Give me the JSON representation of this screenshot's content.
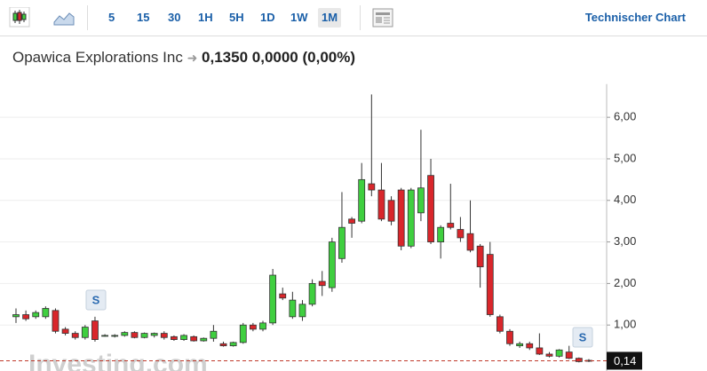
{
  "toolbar": {
    "intervals": [
      "5",
      "15",
      "30",
      "1H",
      "5H",
      "1D",
      "1W",
      "1M"
    ],
    "active": "1M",
    "link": "Technischer Chart"
  },
  "quote": {
    "name": "Opawica Explorations Inc",
    "price": "0,1350",
    "change": "0,0000",
    "change_pct": "(0,00%)"
  },
  "chart_data": {
    "type": "candlestick",
    "series": [
      {
        "up_color": "#3fcf3f",
        "down_color": "#d9262b",
        "open": [
          1.2,
          1.25,
          1.2,
          1.2,
          1.35,
          0.9,
          0.8,
          0.7,
          1.1,
          0.75,
          0.74,
          0.75,
          0.82,
          0.7,
          0.75,
          0.8,
          0.72,
          0.65,
          0.72,
          0.62,
          0.68,
          0.55,
          0.5,
          0.58,
          1.0,
          0.9,
          1.05,
          1.75,
          1.2,
          1.2,
          1.5,
          2.05,
          1.9,
          2.6,
          3.55,
          3.5,
          4.4,
          4.25,
          4.0,
          4.25,
          2.9,
          3.7,
          4.6,
          3.0,
          3.45,
          3.3,
          3.2,
          2.9,
          2.7,
          1.2,
          0.85,
          0.5,
          0.55,
          0.45,
          0.3,
          0.25,
          0.35,
          0.2,
          0.15
        ],
        "high": [
          1.4,
          1.35,
          1.35,
          1.45,
          1.4,
          0.95,
          0.85,
          1.0,
          1.2,
          0.78,
          0.78,
          0.85,
          0.85,
          0.82,
          0.82,
          0.85,
          0.75,
          0.78,
          0.75,
          0.7,
          1.0,
          0.6,
          0.6,
          1.05,
          1.05,
          1.1,
          2.35,
          1.9,
          1.8,
          1.6,
          2.1,
          2.3,
          3.1,
          4.2,
          3.6,
          4.9,
          6.55,
          4.9,
          4.1,
          4.3,
          4.3,
          5.7,
          5.0,
          3.4,
          4.4,
          3.6,
          4.0,
          2.95,
          3.0,
          1.25,
          0.9,
          0.6,
          0.6,
          0.8,
          0.35,
          0.42,
          0.5,
          0.22,
          0.18
        ],
        "low": [
          1.05,
          1.1,
          1.15,
          1.15,
          0.8,
          0.75,
          0.65,
          0.65,
          0.6,
          0.72,
          0.7,
          0.72,
          0.68,
          0.68,
          0.7,
          0.65,
          0.62,
          0.62,
          0.6,
          0.6,
          0.6,
          0.48,
          0.48,
          0.55,
          0.85,
          0.85,
          1.0,
          1.6,
          1.15,
          1.1,
          1.45,
          1.7,
          1.8,
          2.5,
          3.1,
          3.45,
          4.1,
          3.5,
          3.4,
          2.8,
          2.85,
          3.5,
          2.95,
          2.6,
          3.3,
          3.0,
          2.75,
          1.9,
          1.2,
          0.8,
          0.5,
          0.45,
          0.4,
          0.28,
          0.22,
          0.22,
          0.18,
          0.1,
          0.11
        ],
        "close": [
          1.25,
          1.15,
          1.3,
          1.4,
          0.85,
          0.8,
          0.7,
          0.95,
          0.65,
          0.75,
          0.75,
          0.82,
          0.7,
          0.8,
          0.8,
          0.7,
          0.65,
          0.75,
          0.62,
          0.68,
          0.85,
          0.5,
          0.58,
          1.0,
          0.9,
          1.05,
          2.2,
          1.65,
          1.6,
          1.5,
          2.0,
          1.95,
          3.0,
          3.35,
          3.45,
          4.5,
          4.25,
          3.55,
          3.5,
          2.9,
          4.25,
          4.3,
          3.0,
          3.35,
          3.35,
          3.1,
          2.8,
          2.4,
          1.25,
          0.85,
          0.55,
          0.55,
          0.45,
          0.3,
          0.25,
          0.4,
          0.2,
          0.12,
          0.13
        ]
      }
    ],
    "ylim": [
      -0.1,
      6.8
    ],
    "yticks": [
      {
        "value": 1,
        "label": "1,00"
      },
      {
        "value": 2,
        "label": "2,00"
      },
      {
        "value": 3,
        "label": "3,00"
      },
      {
        "value": 4,
        "label": "4,00"
      },
      {
        "value": 5,
        "label": "5,00"
      },
      {
        "value": 6,
        "label": "6,00"
      }
    ],
    "grid": true,
    "last_price": {
      "value": 0.14,
      "label": "0,14"
    },
    "annotations": [
      {
        "text": "S"
      },
      {
        "text": "S"
      }
    ],
    "watermark": "Investing.com"
  }
}
